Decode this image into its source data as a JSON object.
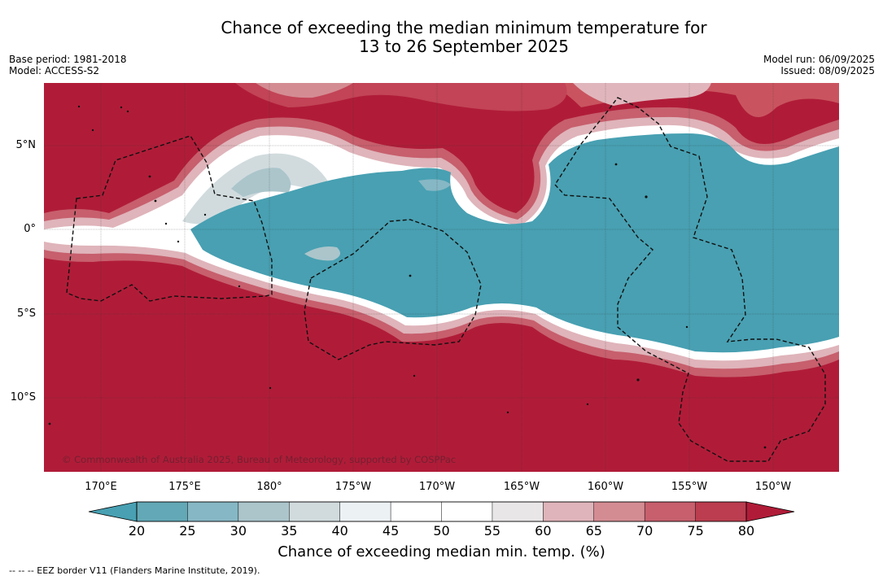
{
  "title": {
    "line1": "Chance of exceeding the median minimum temperature for",
    "line2": "13 to 26 September 2025"
  },
  "meta_left": {
    "base_period": "Base period: 1981-2018",
    "model": "Model: ACCESS-S2"
  },
  "meta_right": {
    "model_run": "Model run: 06/09/2025",
    "issued": "Issued: 08/09/2025"
  },
  "map": {
    "lat_labels": [
      "5°N",
      "0°",
      "5°S",
      "10°S"
    ],
    "lon_labels": [
      "170°E",
      "175°E",
      "180°",
      "175°W",
      "170°W",
      "165°W",
      "160°W",
      "155°W",
      "150°W"
    ],
    "copyright": "© Commonwealth of Australia 2025, Bureau of Meteorology, supported by COSPPac",
    "colors": {
      "high": "#b01c38",
      "mid_high": "#c24456",
      "low": "#48a0b2",
      "neutral": "#ffffff",
      "pink": "#e0b6bc"
    }
  },
  "colorbar": {
    "title": "Chance of exceeding median min. temp. (%)",
    "ticks": [
      "20",
      "25",
      "30",
      "35",
      "40",
      "45",
      "50",
      "55",
      "60",
      "65",
      "70",
      "75",
      "80"
    ],
    "colors": [
      "#63a8b6",
      "#86b7c4",
      "#abc5cb",
      "#d1dbde",
      "#ecf1f4",
      "#ffffff",
      "#ffffff",
      "#e9e6e7",
      "#dfb4ba",
      "#d48c93",
      "#c75f6d",
      "#bb3d4f"
    ],
    "low_extend_color": "#48a0b2",
    "high_extend_color": "#b01c38"
  },
  "footnote": "--  --  -- EEZ border V11 (Flanders Marine Institute, 2019)."
}
